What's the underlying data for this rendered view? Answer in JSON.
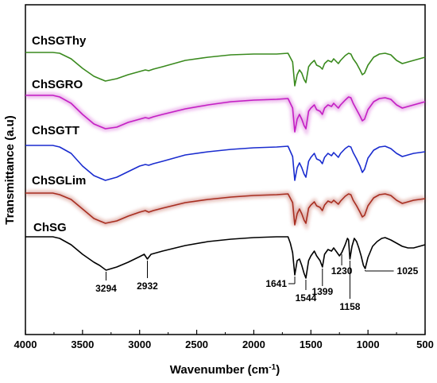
{
  "chart_data": {
    "type": "line",
    "xlabel": "Wavenumber (cm",
    "xlabel_sup": "-1",
    "xlabel_end": ")",
    "ylabel": "Transmittance (a.u)",
    "xlim": [
      4000,
      500
    ],
    "x_reversed": true,
    "x_ticks": [
      4000,
      3500,
      3000,
      2500,
      2000,
      1500,
      1000,
      500
    ],
    "y_ticks_shown": false,
    "grid": false,
    "legend": "inline-labels",
    "series": [
      {
        "name": "ChSGThy",
        "color": "#3a8a1e",
        "glow": false,
        "points": [
          [
            3760,
            0
          ],
          [
            3700,
            -1
          ],
          [
            3600,
            -8
          ],
          [
            3500,
            -20
          ],
          [
            3400,
            -30
          ],
          [
            3300,
            -36
          ],
          [
            3200,
            -33
          ],
          [
            3100,
            -28
          ],
          [
            3000,
            -24
          ],
          [
            2950,
            -22
          ],
          [
            2920,
            -23
          ],
          [
            2880,
            -21
          ],
          [
            2800,
            -18
          ],
          [
            2600,
            -10
          ],
          [
            2400,
            -6
          ],
          [
            2200,
            -3
          ],
          [
            2000,
            -2
          ],
          [
            1800,
            -2
          ],
          [
            1700,
            -1
          ],
          [
            1660,
            -12
          ],
          [
            1641,
            -42
          ],
          [
            1620,
            -28
          ],
          [
            1600,
            -22
          ],
          [
            1580,
            -26
          ],
          [
            1560,
            -34
          ],
          [
            1544,
            -38
          ],
          [
            1520,
            -18
          ],
          [
            1500,
            -14
          ],
          [
            1470,
            -10
          ],
          [
            1450,
            -16
          ],
          [
            1420,
            -18
          ],
          [
            1400,
            -21
          ],
          [
            1380,
            -14
          ],
          [
            1350,
            -10
          ],
          [
            1320,
            -12
          ],
          [
            1300,
            -8
          ],
          [
            1260,
            -14
          ],
          [
            1240,
            -10
          ],
          [
            1200,
            -4
          ],
          [
            1170,
            -1
          ],
          [
            1150,
            -2
          ],
          [
            1130,
            -8
          ],
          [
            1100,
            -14
          ],
          [
            1070,
            -22
          ],
          [
            1050,
            -28
          ],
          [
            1030,
            -26
          ],
          [
            1000,
            -16
          ],
          [
            950,
            -6
          ],
          [
            900,
            -2
          ],
          [
            850,
            -1
          ],
          [
            800,
            -3
          ],
          [
            750,
            -10
          ],
          [
            700,
            -14
          ],
          [
            650,
            -12
          ],
          [
            600,
            -10
          ],
          [
            550,
            -8
          ],
          [
            500,
            -6
          ]
        ]
      },
      {
        "name": "ChSGRO",
        "color": "#c41fc4",
        "glow": true,
        "points": [
          [
            3760,
            0
          ],
          [
            3700,
            -2
          ],
          [
            3600,
            -10
          ],
          [
            3500,
            -24
          ],
          [
            3400,
            -36
          ],
          [
            3300,
            -42
          ],
          [
            3200,
            -40
          ],
          [
            3100,
            -34
          ],
          [
            3000,
            -30
          ],
          [
            2950,
            -28
          ],
          [
            2920,
            -29
          ],
          [
            2880,
            -27
          ],
          [
            2800,
            -24
          ],
          [
            2600,
            -17
          ],
          [
            2400,
            -12
          ],
          [
            2200,
            -8
          ],
          [
            2000,
            -6
          ],
          [
            1800,
            -5
          ],
          [
            1700,
            -4
          ],
          [
            1660,
            -16
          ],
          [
            1641,
            -46
          ],
          [
            1620,
            -30
          ],
          [
            1600,
            -24
          ],
          [
            1580,
            -30
          ],
          [
            1560,
            -38
          ],
          [
            1544,
            -42
          ],
          [
            1520,
            -20
          ],
          [
            1500,
            -16
          ],
          [
            1470,
            -12
          ],
          [
            1450,
            -18
          ],
          [
            1420,
            -20
          ],
          [
            1400,
            -24
          ],
          [
            1380,
            -16
          ],
          [
            1350,
            -12
          ],
          [
            1320,
            -14
          ],
          [
            1300,
            -10
          ],
          [
            1260,
            -16
          ],
          [
            1240,
            -12
          ],
          [
            1200,
            -6
          ],
          [
            1170,
            -2
          ],
          [
            1150,
            -3
          ],
          [
            1130,
            -10
          ],
          [
            1100,
            -18
          ],
          [
            1070,
            -26
          ],
          [
            1050,
            -32
          ],
          [
            1030,
            -30
          ],
          [
            1000,
            -18
          ],
          [
            950,
            -8
          ],
          [
            900,
            -4
          ],
          [
            850,
            -3
          ],
          [
            800,
            -5
          ],
          [
            750,
            -12
          ],
          [
            700,
            -16
          ],
          [
            650,
            -14
          ],
          [
            600,
            -12
          ],
          [
            550,
            -10
          ],
          [
            500,
            -8
          ]
        ]
      },
      {
        "name": "ChSGTT",
        "color": "#1a2ccf",
        "glow": false,
        "points": [
          [
            3760,
            0
          ],
          [
            3700,
            -2
          ],
          [
            3600,
            -10
          ],
          [
            3500,
            -26
          ],
          [
            3400,
            -38
          ],
          [
            3300,
            -44
          ],
          [
            3200,
            -40
          ],
          [
            3100,
            -33
          ],
          [
            3000,
            -26
          ],
          [
            2950,
            -24
          ],
          [
            2920,
            -25
          ],
          [
            2880,
            -23
          ],
          [
            2800,
            -20
          ],
          [
            2600,
            -12
          ],
          [
            2400,
            -8
          ],
          [
            2200,
            -5
          ],
          [
            2000,
            -3
          ],
          [
            1800,
            -2
          ],
          [
            1700,
            -1
          ],
          [
            1660,
            -14
          ],
          [
            1641,
            -44
          ],
          [
            1620,
            -28
          ],
          [
            1600,
            -22
          ],
          [
            1580,
            -28
          ],
          [
            1560,
            -36
          ],
          [
            1544,
            -40
          ],
          [
            1520,
            -20
          ],
          [
            1500,
            -15
          ],
          [
            1470,
            -10
          ],
          [
            1450,
            -17
          ],
          [
            1420,
            -19
          ],
          [
            1400,
            -23
          ],
          [
            1380,
            -15
          ],
          [
            1350,
            -10
          ],
          [
            1320,
            -13
          ],
          [
            1300,
            -9
          ],
          [
            1260,
            -15
          ],
          [
            1240,
            -10
          ],
          [
            1200,
            -4
          ],
          [
            1170,
            -1
          ],
          [
            1150,
            -2
          ],
          [
            1130,
            -9
          ],
          [
            1100,
            -17
          ],
          [
            1070,
            -26
          ],
          [
            1050,
            -34
          ],
          [
            1030,
            -30
          ],
          [
            1000,
            -16
          ],
          [
            950,
            -6
          ],
          [
            900,
            -2
          ],
          [
            850,
            -1
          ],
          [
            800,
            -4
          ],
          [
            750,
            -10
          ],
          [
            700,
            -14
          ],
          [
            650,
            -12
          ],
          [
            600,
            -10
          ],
          [
            550,
            -9
          ],
          [
            500,
            -8
          ]
        ]
      },
      {
        "name": "ChSGLim",
        "color": "#a82e20",
        "glow": true,
        "points": [
          [
            3760,
            0
          ],
          [
            3700,
            -2
          ],
          [
            3600,
            -8
          ],
          [
            3500,
            -20
          ],
          [
            3400,
            -32
          ],
          [
            3300,
            -38
          ],
          [
            3200,
            -35
          ],
          [
            3100,
            -29
          ],
          [
            3000,
            -24
          ],
          [
            2950,
            -22
          ],
          [
            2920,
            -24
          ],
          [
            2880,
            -22
          ],
          [
            2800,
            -19
          ],
          [
            2600,
            -12
          ],
          [
            2400,
            -8
          ],
          [
            2200,
            -5
          ],
          [
            2000,
            -3
          ],
          [
            1800,
            -2
          ],
          [
            1700,
            -1
          ],
          [
            1660,
            -12
          ],
          [
            1641,
            -40
          ],
          [
            1620,
            -26
          ],
          [
            1600,
            -20
          ],
          [
            1580,
            -26
          ],
          [
            1560,
            -34
          ],
          [
            1544,
            -38
          ],
          [
            1520,
            -19
          ],
          [
            1500,
            -15
          ],
          [
            1470,
            -11
          ],
          [
            1450,
            -16
          ],
          [
            1420,
            -18
          ],
          [
            1400,
            -22
          ],
          [
            1380,
            -15
          ],
          [
            1350,
            -10
          ],
          [
            1320,
            -12
          ],
          [
            1300,
            -9
          ],
          [
            1260,
            -14
          ],
          [
            1240,
            -10
          ],
          [
            1200,
            -4
          ],
          [
            1170,
            -1
          ],
          [
            1150,
            -2
          ],
          [
            1130,
            -9
          ],
          [
            1100,
            -16
          ],
          [
            1070,
            -24
          ],
          [
            1050,
            -30
          ],
          [
            1030,
            -28
          ],
          [
            1000,
            -16
          ],
          [
            950,
            -6
          ],
          [
            900,
            -2
          ],
          [
            850,
            -1
          ],
          [
            800,
            -3
          ],
          [
            750,
            -9
          ],
          [
            700,
            -13
          ],
          [
            650,
            -11
          ],
          [
            600,
            -9
          ],
          [
            550,
            -8
          ],
          [
            500,
            -7
          ]
        ]
      },
      {
        "name": "ChSG",
        "color": "#000000",
        "glow": false,
        "points": [
          [
            3760,
            0
          ],
          [
            3700,
            -2
          ],
          [
            3600,
            -10
          ],
          [
            3500,
            -22
          ],
          [
            3400,
            -32
          ],
          [
            3350,
            -36
          ],
          [
            3294,
            -42
          ],
          [
            3200,
            -38
          ],
          [
            3100,
            -32
          ],
          [
            3000,
            -25
          ],
          [
            2960,
            -22
          ],
          [
            2932,
            -28
          ],
          [
            2900,
            -22
          ],
          [
            2800,
            -18
          ],
          [
            2600,
            -11
          ],
          [
            2400,
            -6
          ],
          [
            2200,
            -3
          ],
          [
            2000,
            -1
          ],
          [
            1800,
            0
          ],
          [
            1700,
            0
          ],
          [
            1680,
            -8
          ],
          [
            1660,
            -20
          ],
          [
            1641,
            -48
          ],
          [
            1620,
            -30
          ],
          [
            1600,
            -28
          ],
          [
            1580,
            -36
          ],
          [
            1560,
            -46
          ],
          [
            1544,
            -52
          ],
          [
            1520,
            -30
          ],
          [
            1500,
            -24
          ],
          [
            1470,
            -18
          ],
          [
            1450,
            -24
          ],
          [
            1420,
            -30
          ],
          [
            1399,
            -38
          ],
          [
            1380,
            -22
          ],
          [
            1350,
            -16
          ],
          [
            1320,
            -18
          ],
          [
            1300,
            -14
          ],
          [
            1280,
            -18
          ],
          [
            1250,
            -24
          ],
          [
            1230,
            -20
          ],
          [
            1200,
            -10
          ],
          [
            1180,
            -2
          ],
          [
            1170,
            -4
          ],
          [
            1158,
            -28
          ],
          [
            1140,
            -12
          ],
          [
            1120,
            -2
          ],
          [
            1100,
            -6
          ],
          [
            1080,
            -14
          ],
          [
            1060,
            -24
          ],
          [
            1040,
            -36
          ],
          [
            1025,
            -40
          ],
          [
            1000,
            -26
          ],
          [
            960,
            -12
          ],
          [
            920,
            -6
          ],
          [
            880,
            -2
          ],
          [
            850,
            -1
          ],
          [
            800,
            -4
          ],
          [
            750,
            -8
          ],
          [
            700,
            -12
          ],
          [
            650,
            -14
          ],
          [
            600,
            -14
          ],
          [
            550,
            -12
          ],
          [
            500,
            -10
          ]
        ]
      }
    ],
    "annotations": [
      {
        "x": 3294,
        "text": "3294",
        "series": "ChSG"
      },
      {
        "x": 2932,
        "text": "2932",
        "series": "ChSG"
      },
      {
        "x": 1641,
        "text": "1641",
        "series": "ChSG"
      },
      {
        "x": 1544,
        "text": "1544",
        "series": "ChSG"
      },
      {
        "x": 1399,
        "text": "1399",
        "series": "ChSG"
      },
      {
        "x": 1230,
        "text": "1230",
        "series": "ChSG"
      },
      {
        "x": 1158,
        "text": "1158",
        "series": "ChSG"
      },
      {
        "x": 1025,
        "text": "1025",
        "series": "ChSG"
      }
    ]
  }
}
